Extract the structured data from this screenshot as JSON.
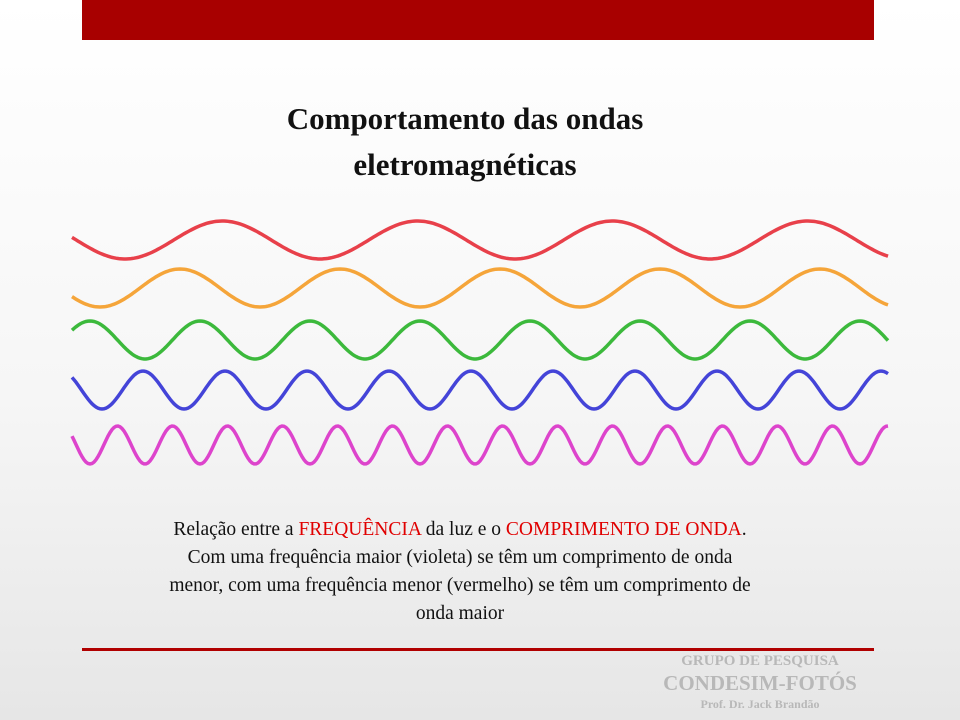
{
  "title": [
    "Comportamento das ondas",
    "eletromagnéticas"
  ],
  "caption": {
    "parts": [
      "Relação entre a ",
      "FREQUÊNCIA",
      " da luz e o ",
      "COMPRIMENTO DE ONDA",
      ". Com uma frequência maior (violeta) se têm um comprimento de onda menor, com uma frequência menor (vermelho) se têm um comprimento de onda maior"
    ]
  },
  "footer": {
    "group": "GRUPO DE PESQUISA",
    "name": "CONDESIM-FOTÓS",
    "author": "Prof.  Dr. Jack Brandão"
  }
}
